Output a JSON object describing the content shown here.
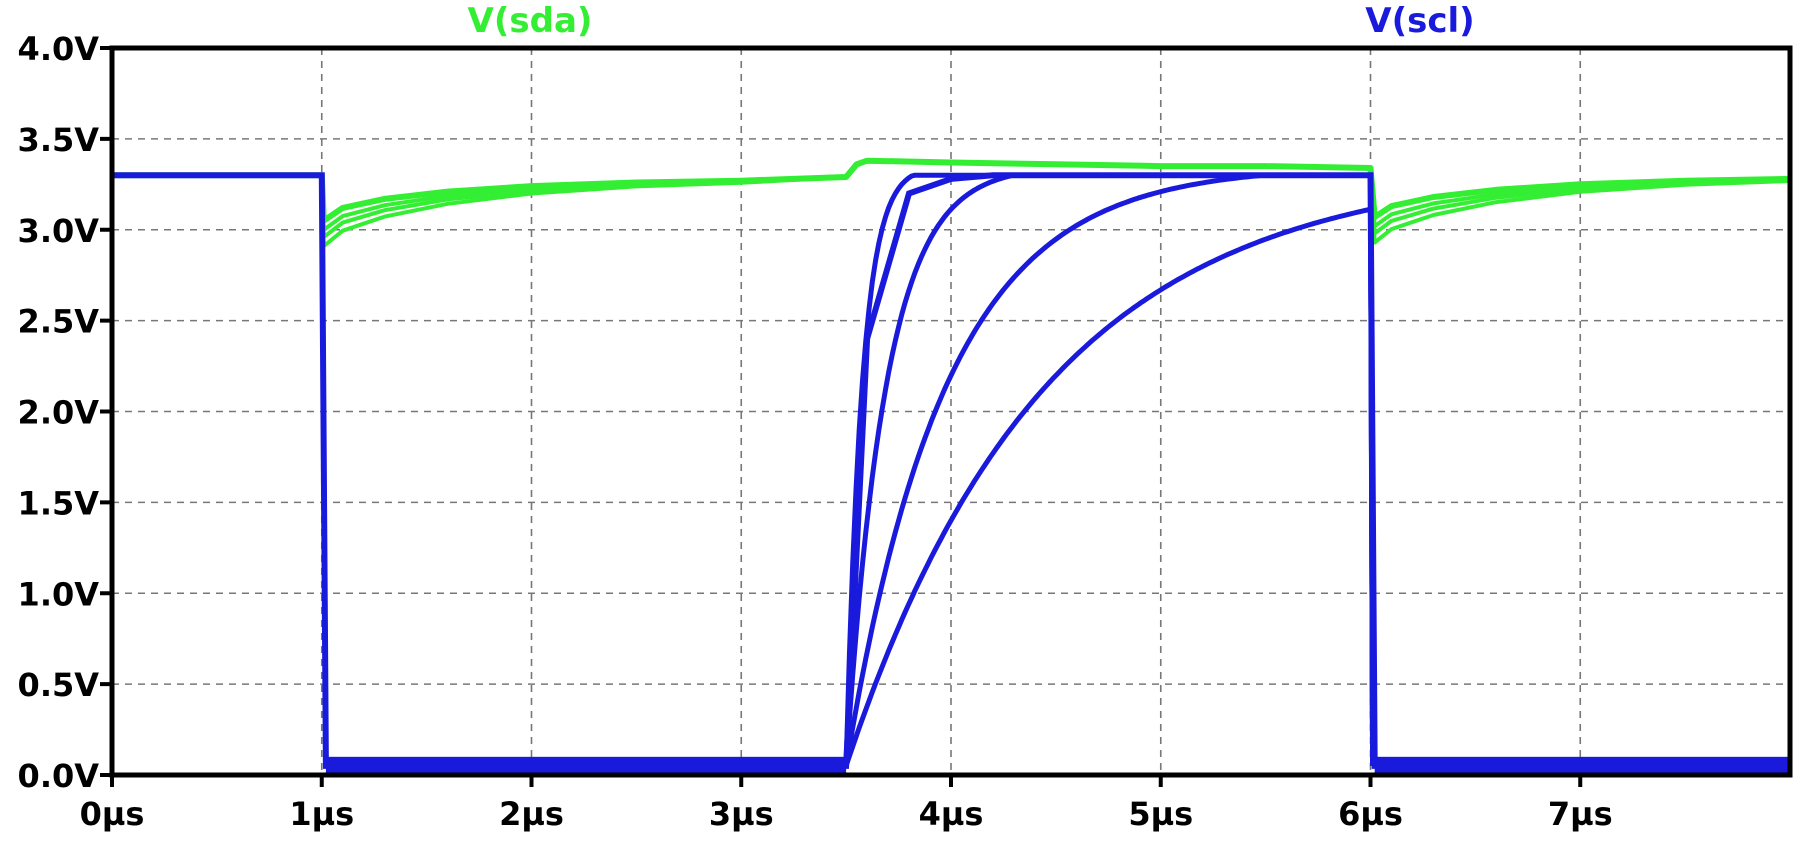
{
  "chart_data": {
    "type": "line",
    "title": "",
    "xlabel": "",
    "ylabel": "",
    "x_unit": "µs",
    "y_unit": "V",
    "xlim": [
      0,
      8
    ],
    "ylim": [
      0,
      4
    ],
    "grid": true,
    "x_ticks": [
      "0µs",
      "1µs",
      "2µs",
      "3µs",
      "4µs",
      "5µs",
      "6µs",
      "7µs"
    ],
    "y_ticks": [
      "0.0V",
      "0.5V",
      "1.0V",
      "1.5V",
      "2.0V",
      "2.5V",
      "3.0V",
      "3.5V",
      "4.0V"
    ],
    "colors": {
      "sda": "#33ee33",
      "scl": "#1a1add",
      "axis": "#000000",
      "grid": "#777777"
    },
    "series": [
      {
        "name": "V(sda)",
        "color": "#33ee33",
        "x": [
          0,
          1.0,
          1.01,
          1.1,
          1.3,
          1.6,
          2.0,
          2.5,
          3.0,
          3.5,
          3.55,
          3.6,
          4.0,
          4.5,
          5.0,
          5.5,
          6.0,
          6.02,
          6.1,
          6.3,
          6.6,
          7.0,
          7.5,
          8.0
        ],
        "y": [
          3.3,
          3.3,
          3.05,
          3.12,
          3.17,
          3.21,
          3.24,
          3.26,
          3.27,
          3.29,
          3.36,
          3.38,
          3.37,
          3.36,
          3.35,
          3.35,
          3.34,
          3.07,
          3.13,
          3.18,
          3.22,
          3.25,
          3.27,
          3.28
        ]
      },
      {
        "name": "V(scl)",
        "color": "#1a1add",
        "x": [
          0,
          1.0,
          1.02,
          3.5,
          3.6,
          3.8,
          4.0,
          4.2,
          4.5,
          5.0,
          5.5,
          6.0,
          6.02,
          8.0
        ],
        "y": [
          3.3,
          3.3,
          0.05,
          0.05,
          2.4,
          3.2,
          3.28,
          3.3,
          3.3,
          3.3,
          3.3,
          3.3,
          0.05,
          0.05
        ]
      }
    ]
  }
}
